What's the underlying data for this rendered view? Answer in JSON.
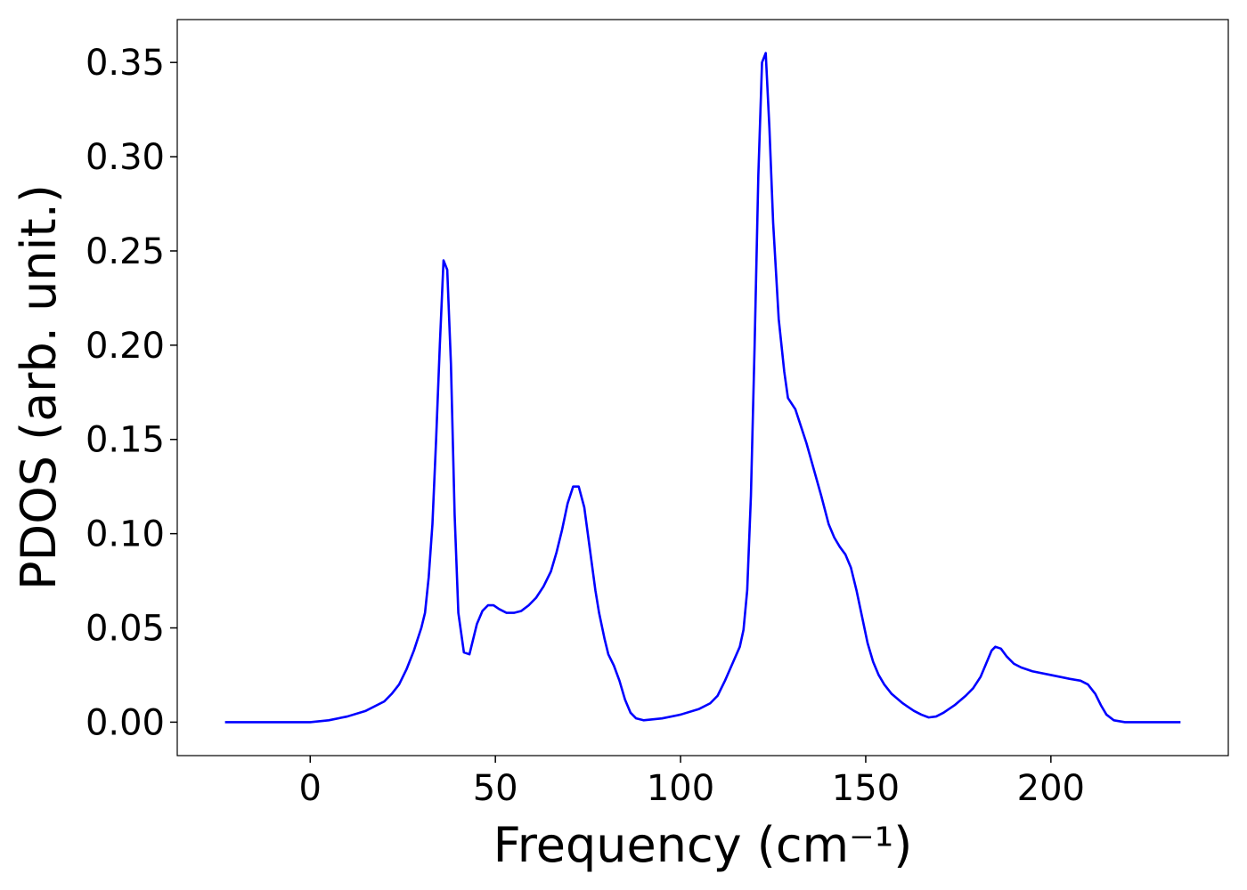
{
  "chart_data": {
    "type": "line",
    "xlabel": "Frequency (cm⁻¹)",
    "ylabel": "PDOS (arb. unit.)",
    "x": [
      -23,
      -10,
      0,
      5,
      10,
      15,
      20,
      22,
      24,
      26,
      28,
      30,
      31,
      32,
      33,
      34,
      35,
      36,
      37,
      38,
      39,
      40,
      41.5,
      43,
      45,
      46.5,
      48,
      49.5,
      51,
      53,
      55,
      57,
      59,
      61,
      63,
      65,
      66.5,
      68,
      69.5,
      71,
      72.5,
      74,
      75.5,
      77,
      78,
      79.5,
      80.5,
      82,
      83.5,
      85,
      86.5,
      88,
      90,
      95,
      100,
      105,
      108,
      110,
      112,
      114,
      116,
      117,
      118,
      119,
      120,
      121,
      122,
      123,
      124,
      125,
      126.5,
      128,
      129,
      131,
      132,
      134,
      136,
      138,
      140,
      141.5,
      143,
      144.5,
      146,
      147.5,
      149,
      150.5,
      152,
      153.5,
      155,
      157,
      160,
      163,
      165,
      167,
      169,
      171,
      174,
      177,
      179,
      181,
      182.5,
      184,
      185,
      186.5,
      188,
      190,
      192,
      195,
      200,
      205,
      208,
      210,
      212,
      213.5,
      215,
      217,
      220,
      225,
      235
    ],
    "series": [
      {
        "name": "PDOS",
        "color": "#0000ff",
        "values": [
          0,
          0,
          0,
          0.001,
          0.003,
          0.006,
          0.011,
          0.015,
          0.02,
          0.028,
          0.038,
          0.05,
          0.058,
          0.077,
          0.105,
          0.15,
          0.2,
          0.245,
          0.24,
          0.19,
          0.11,
          0.058,
          0.037,
          0.036,
          0.052,
          0.059,
          0.062,
          0.062,
          0.06,
          0.058,
          0.058,
          0.059,
          0.062,
          0.066,
          0.072,
          0.08,
          0.09,
          0.102,
          0.116,
          0.125,
          0.125,
          0.114,
          0.092,
          0.07,
          0.058,
          0.044,
          0.036,
          0.03,
          0.022,
          0.012,
          0.005,
          0.002,
          0.001,
          0.002,
          0.004,
          0.007,
          0.01,
          0.014,
          0.022,
          0.031,
          0.04,
          0.049,
          0.07,
          0.12,
          0.2,
          0.29,
          0.35,
          0.355,
          0.315,
          0.265,
          0.214,
          0.186,
          0.172,
          0.166,
          0.16,
          0.148,
          0.134,
          0.12,
          0.105,
          0.098,
          0.093,
          0.089,
          0.082,
          0.07,
          0.056,
          0.042,
          0.032,
          0.025,
          0.02,
          0.015,
          0.01,
          0.006,
          0.004,
          0.0025,
          0.003,
          0.005,
          0.009,
          0.014,
          0.018,
          0.024,
          0.031,
          0.038,
          0.04,
          0.039,
          0.035,
          0.031,
          0.029,
          0.027,
          0.025,
          0.023,
          0.022,
          0.02,
          0.015,
          0.009,
          0.004,
          0.001,
          0,
          0,
          0
        ]
      }
    ],
    "xlim": [
      -35.9,
      247.9
    ],
    "xticks": [
      0,
      50,
      100,
      150,
      200
    ],
    "ylim": [
      -0.01775,
      0.37275
    ],
    "yticks": [
      {
        "value": 0,
        "label": "0.00"
      },
      {
        "value": 0.05,
        "label": "0.05"
      },
      {
        "value": 0.1,
        "label": "0.10"
      },
      {
        "value": 0.15,
        "label": "0.15"
      },
      {
        "value": 0.2,
        "label": "0.20"
      },
      {
        "value": 0.25,
        "label": "0.25"
      },
      {
        "value": 0.3,
        "label": "0.30"
      },
      {
        "value": 0.35,
        "label": "0.35"
      }
    ],
    "grid": false
  }
}
